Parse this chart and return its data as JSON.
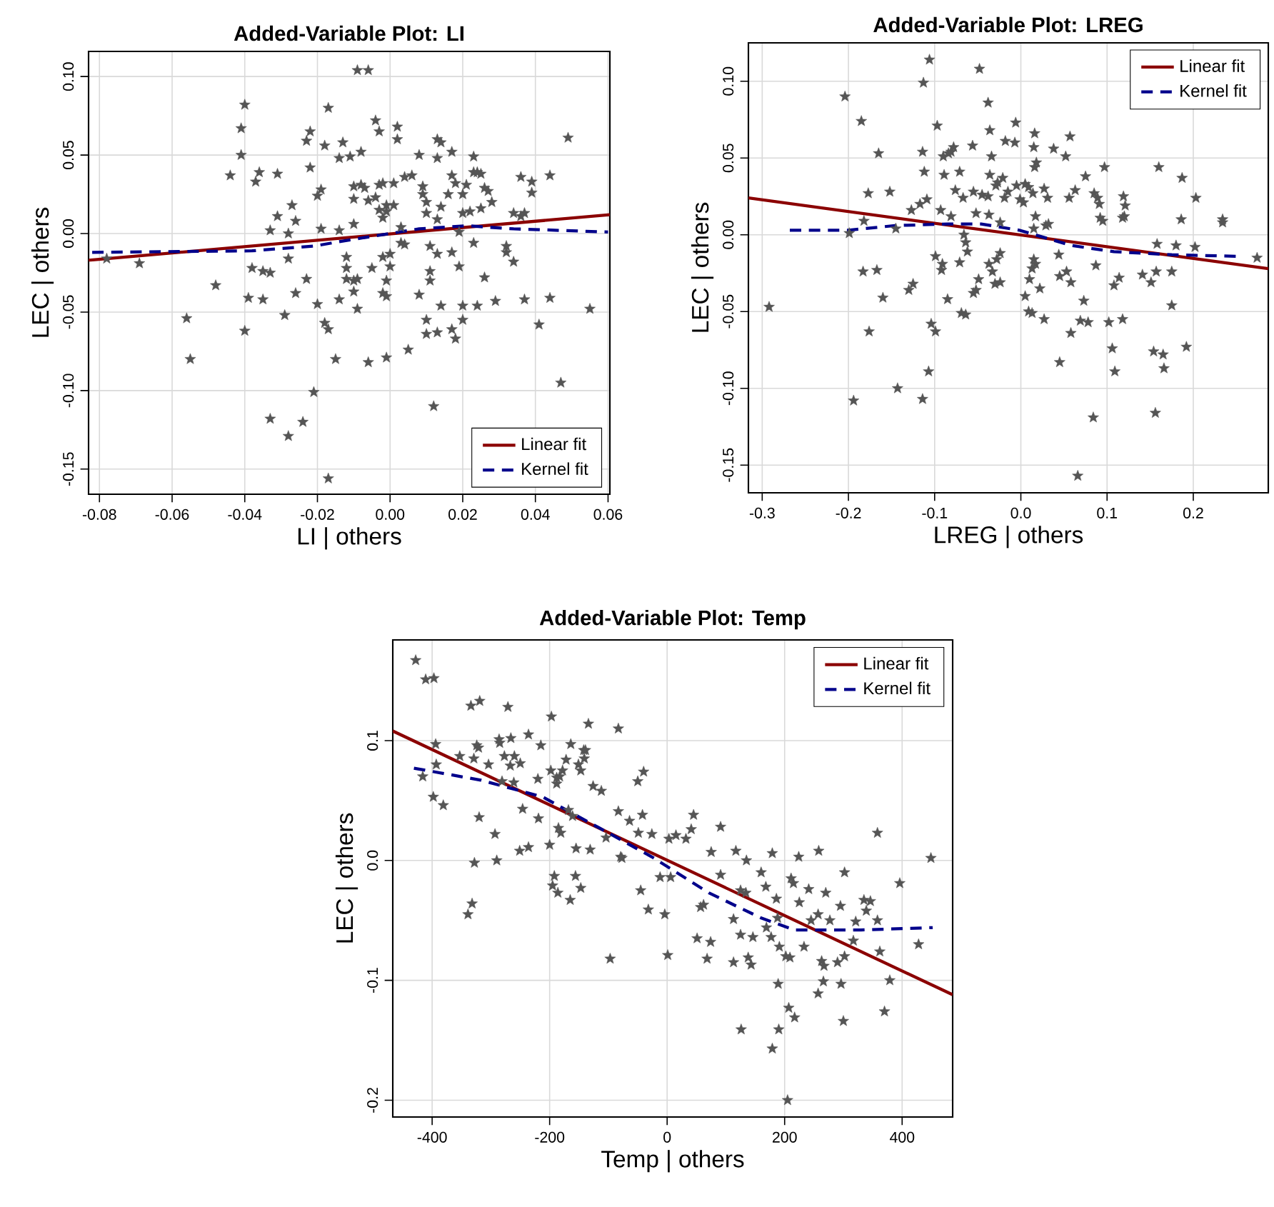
{
  "chart_data": [
    {
      "type": "scatter",
      "title": "Added-Variable Plot: LI",
      "xlabel": "LI | others",
      "ylabel": "LEC  | others",
      "xlim": [
        -0.083,
        0.0605
      ],
      "ylim": [
        -0.166,
        0.116
      ],
      "xticks": [
        {
          "value": -0.08,
          "label": "-0.08"
        },
        {
          "value": -0.06,
          "label": "-0.06"
        },
        {
          "value": -0.04,
          "label": "-0.04"
        },
        {
          "value": -0.02,
          "label": "-0.02"
        },
        {
          "value": 0,
          "label": "0.00"
        },
        {
          "value": 0.02,
          "label": "0.02"
        },
        {
          "value": 0.04,
          "label": "0.04"
        },
        {
          "value": 0.06,
          "label": "0.06"
        }
      ],
      "yticks": [
        {
          "value": -0.15,
          "label": "-0.15"
        },
        {
          "value": -0.1,
          "label": "-0.10"
        },
        {
          "value": -0.05,
          "label": "-0.05"
        },
        {
          "value": 0,
          "label": "0.00"
        },
        {
          "value": 0.05,
          "label": "0.05"
        },
        {
          "value": 0.1,
          "label": "0.10"
        }
      ],
      "grid": true,
      "legend": "bottom right",
      "series": [
        {
          "color": "#555555",
          "marker": "star",
          "x": [
            -0.009,
            -0.006,
            -0.04,
            -0.017,
            -0.004,
            -0.041,
            -0.022,
            -0.003,
            0.002,
            -0.023,
            -0.018,
            -0.013,
            0.002,
            0.013,
            0.014,
            0.049,
            -0.041,
            -0.014,
            -0.011,
            -0.008,
            0.008,
            0.013,
            0.017,
            0.023,
            -0.044,
            -0.036,
            -0.037,
            -0.031,
            -0.022,
            0.004,
            0.006,
            0.017,
            0.023,
            0.024,
            0.025,
            0.036,
            0.044,
            -0.019,
            -0.02,
            -0.01,
            -0.008,
            -0.007,
            -0.003,
            -0.002,
            0.001,
            0.009,
            0.018,
            0.021,
            0.026,
            0.027,
            0.039,
            0.039,
            -0.027,
            -0.01,
            -0.006,
            -0.004,
            -0.003,
            -0.001,
            0.001,
            0.009,
            0.01,
            0.014,
            0.016,
            0.02,
            0.025,
            0.028,
            -0.031,
            -0.026,
            -0.01,
            -0.002,
            -0.001,
            0.01,
            0.013,
            0.02,
            0.022,
            0.034,
            0.037,
            0.036,
            -0.033,
            -0.028,
            -0.019,
            -0.014,
            0.003,
            0.019,
            -0.078,
            -0.069,
            -0.028,
            -0.038,
            -0.035,
            -0.033,
            -0.023,
            -0.012,
            -0.012,
            -0.012,
            -0.01,
            -0.009,
            -0.005,
            -0.002,
            0.0,
            0.0,
            -0.001,
            0.003,
            0.004,
            0.011,
            0.013,
            0.011,
            0.011,
            0.017,
            0.019,
            0.023,
            0.026,
            0.032,
            0.032,
            0.034,
            -0.048,
            -0.039,
            -0.035,
            -0.026,
            -0.02,
            -0.014,
            -0.01,
            -0.009,
            -0.002,
            -0.001,
            0.008,
            0.014,
            0.02,
            0.024,
            0.029,
            0.037,
            0.044,
            0.055,
            -0.056,
            -0.04,
            -0.029,
            -0.018,
            -0.017,
            0.01,
            0.01,
            0.013,
            0.017,
            0.018,
            0.02,
            0.041,
            -0.055,
            -0.015,
            -0.006,
            -0.001,
            0.005,
            -0.021,
            0.047,
            -0.033,
            -0.024,
            -0.028,
            0.012,
            -0.017
          ],
          "values": [
            0.104,
            0.104,
            0.082,
            0.08,
            0.072,
            0.067,
            0.065,
            0.065,
            0.068,
            0.059,
            0.056,
            0.058,
            0.06,
            0.06,
            0.058,
            0.061,
            0.05,
            0.048,
            0.049,
            0.052,
            0.05,
            0.048,
            0.052,
            0.049,
            0.037,
            0.039,
            0.033,
            0.038,
            0.042,
            0.036,
            0.037,
            0.037,
            0.039,
            0.039,
            0.038,
            0.036,
            0.037,
            0.028,
            0.024,
            0.03,
            0.031,
            0.029,
            0.031,
            0.032,
            0.032,
            0.03,
            0.032,
            0.031,
            0.029,
            0.027,
            0.033,
            0.026,
            0.018,
            0.022,
            0.021,
            0.023,
            0.015,
            0.018,
            0.018,
            0.025,
            0.02,
            0.017,
            0.025,
            0.025,
            0.016,
            0.02,
            0.011,
            0.008,
            0.006,
            0.01,
            0.014,
            0.013,
            0.009,
            0.013,
            0.014,
            0.013,
            0.013,
            0.011,
            0.002,
            0.0,
            0.003,
            0.002,
            0.004,
            0.001,
            -0.016,
            -0.019,
            -0.016,
            -0.022,
            -0.024,
            -0.025,
            -0.029,
            -0.015,
            -0.022,
            -0.029,
            -0.03,
            -0.029,
            -0.022,
            -0.015,
            -0.013,
            -0.021,
            -0.03,
            -0.006,
            -0.007,
            -0.008,
            -0.013,
            -0.024,
            -0.03,
            -0.012,
            -0.021,
            -0.006,
            -0.028,
            -0.008,
            -0.012,
            -0.018,
            -0.033,
            -0.041,
            -0.042,
            -0.038,
            -0.045,
            -0.042,
            -0.037,
            -0.048,
            -0.038,
            -0.04,
            -0.039,
            -0.046,
            -0.046,
            -0.046,
            -0.043,
            -0.042,
            -0.041,
            -0.048,
            -0.054,
            -0.062,
            -0.052,
            -0.057,
            -0.061,
            -0.055,
            -0.064,
            -0.063,
            -0.061,
            -0.067,
            -0.055,
            -0.058,
            -0.08,
            -0.08,
            -0.082,
            -0.079,
            -0.074,
            -0.101,
            -0.095,
            -0.118,
            -0.12,
            -0.129,
            -0.11,
            -0.156
          ]
        },
        {
          "type": "line",
          "name": "Linear fit",
          "color": "#8b0000",
          "line_style": "solid",
          "x": [
            -0.083,
            0.0605
          ],
          "values": [
            -0.017,
            0.012
          ]
        },
        {
          "type": "line",
          "name": "Kernel fit",
          "color": "#00008b",
          "line_style": "dashed",
          "x": [
            -0.082,
            -0.038,
            -0.021,
            -0.011,
            0.0,
            0.008,
            0.021,
            0.034,
            0.047,
            0.06
          ],
          "values": [
            -0.012,
            -0.011,
            -0.008,
            -0.004,
            0.0,
            0.003,
            0.005,
            0.003,
            0.002,
            0.001
          ]
        }
      ]
    },
    {
      "type": "scatter",
      "title": "Added-Variable Plot: LREG",
      "xlabel": "LREG | others",
      "ylabel": "LEC  | others",
      "xlim": [
        -0.316,
        0.287
      ],
      "ylim": [
        -0.168,
        0.125
      ],
      "xticks": [
        {
          "value": -0.3,
          "label": "-0.3"
        },
        {
          "value": -0.2,
          "label": "-0.2"
        },
        {
          "value": -0.1,
          "label": "-0.1"
        },
        {
          "value": 0,
          "label": "0.0"
        },
        {
          "value": 0.1,
          "label": "0.1"
        },
        {
          "value": 0.2,
          "label": "0.2"
        }
      ],
      "yticks": [
        {
          "value": -0.15,
          "label": "-0.15"
        },
        {
          "value": -0.1,
          "label": "-0.10"
        },
        {
          "value": -0.05,
          "label": "-0.05"
        },
        {
          "value": 0,
          "label": "0.00"
        },
        {
          "value": 0.05,
          "label": "0.05"
        },
        {
          "value": 0.1,
          "label": "0.10"
        }
      ],
      "grid": true,
      "legend": "top right",
      "series": [
        {
          "color": "#555555",
          "marker": "star",
          "x": [
            -0.106,
            -0.048,
            -0.113,
            -0.204,
            -0.038,
            -0.185,
            -0.097,
            -0.036,
            -0.006,
            0.016,
            0.057,
            -0.018,
            -0.007,
            -0.056,
            -0.114,
            -0.078,
            -0.09,
            -0.084,
            -0.081,
            0.015,
            0.038,
            0.052,
            -0.165,
            -0.034,
            0.018,
            0.016,
            -0.112,
            -0.089,
            -0.071,
            -0.036,
            -0.021,
            -0.027,
            -0.029,
            -0.005,
            0.005,
            0.009,
            0.075,
            0.097,
            0.16,
            0.187,
            -0.177,
            -0.152,
            -0.076,
            -0.055,
            -0.045,
            -0.038,
            -0.015,
            -0.001,
            0.003,
            0.014,
            0.027,
            0.031,
            0.056,
            0.063,
            0.085,
            0.089,
            0.119,
            0.121,
            0.203,
            -0.127,
            -0.117,
            -0.109,
            -0.093,
            -0.081,
            -0.052,
            -0.037,
            -0.067,
            -0.019,
            0.017,
            0.029,
            0.032,
            0.091,
            0.092,
            0.095,
            0.118,
            0.12,
            0.186,
            0.234,
            0.234,
            -0.182,
            -0.199,
            -0.145,
            -0.024,
            0.015,
            -0.066,
            -0.064,
            -0.062,
            -0.071,
            0.158,
            0.18,
            0.202,
            0.274,
            -0.099,
            -0.091,
            -0.092,
            -0.037,
            -0.028,
            -0.024,
            -0.033,
            0.015,
            0.017,
            0.013,
            0.01,
            0.044,
            -0.183,
            -0.167,
            -0.125,
            -0.13,
            -0.049,
            -0.03,
            -0.024,
            -0.052,
            -0.055,
            0.022,
            0.045,
            0.053,
            0.058,
            0.087,
            0.108,
            0.114,
            0.141,
            0.151,
            0.157,
            0.175,
            -0.16,
            -0.085,
            0.005,
            0.073,
            0.175,
            -0.292,
            -0.069,
            -0.064,
            0.009,
            0.013,
            0.027,
            -0.104,
            -0.099,
            -0.176,
            0.058,
            0.069,
            0.078,
            0.102,
            0.118,
            0.106,
            0.154,
            0.165,
            0.192,
            0.045,
            -0.107,
            0.109,
            0.166,
            -0.143,
            -0.194,
            -0.114,
            0.084,
            0.156,
            0.066
          ],
          "values": [
            0.114,
            0.108,
            0.099,
            0.09,
            0.086,
            0.074,
            0.071,
            0.068,
            0.073,
            0.066,
            0.064,
            0.061,
            0.06,
            0.058,
            0.054,
            0.057,
            0.051,
            0.053,
            0.054,
            0.057,
            0.056,
            0.051,
            0.053,
            0.051,
            0.047,
            0.044,
            0.041,
            0.039,
            0.041,
            0.039,
            0.037,
            0.034,
            0.032,
            0.032,
            0.033,
            0.031,
            0.038,
            0.044,
            0.044,
            0.037,
            0.027,
            0.028,
            0.029,
            0.028,
            0.026,
            0.025,
            0.028,
            0.023,
            0.021,
            0.027,
            0.03,
            0.024,
            0.024,
            0.029,
            0.027,
            0.024,
            0.025,
            0.019,
            0.024,
            0.016,
            0.02,
            0.023,
            0.016,
            0.012,
            0.014,
            0.013,
            0.024,
            0.024,
            0.012,
            0.006,
            0.007,
            0.02,
            0.011,
            0.009,
            0.011,
            0.012,
            0.01,
            0.01,
            0.008,
            0.009,
            0.001,
            0.004,
            0.008,
            0.004,
            0.0,
            -0.005,
            -0.011,
            -0.018,
            -0.006,
            -0.007,
            -0.008,
            -0.015,
            -0.014,
            -0.019,
            -0.023,
            -0.019,
            -0.016,
            -0.012,
            -0.024,
            -0.016,
            -0.019,
            -0.022,
            -0.029,
            -0.013,
            -0.024,
            -0.023,
            -0.032,
            -0.036,
            -0.029,
            -0.032,
            -0.031,
            -0.036,
            -0.038,
            -0.035,
            -0.027,
            -0.024,
            -0.031,
            -0.02,
            -0.033,
            -0.028,
            -0.026,
            -0.031,
            -0.024,
            -0.024,
            -0.041,
            -0.042,
            -0.04,
            -0.043,
            -0.046,
            -0.047,
            -0.051,
            -0.052,
            -0.05,
            -0.051,
            -0.055,
            -0.058,
            -0.063,
            -0.063,
            -0.064,
            -0.056,
            -0.057,
            -0.057,
            -0.055,
            -0.074,
            -0.076,
            -0.078,
            -0.073,
            -0.083,
            -0.089,
            -0.089,
            -0.087,
            -0.1,
            -0.108,
            -0.107,
            -0.119,
            -0.116,
            -0.157
          ]
        },
        {
          "type": "line",
          "name": "Linear fit",
          "color": "#8b0000",
          "line_style": "solid",
          "x": [
            -0.316,
            0.287
          ],
          "values": [
            0.024,
            -0.022
          ]
        },
        {
          "type": "line",
          "name": "Kernel fit",
          "color": "#00008b",
          "line_style": "dashed",
          "x": [
            -0.268,
            -0.2,
            -0.146,
            -0.085,
            -0.046,
            -0.002,
            0.059,
            0.108,
            0.175,
            0.252
          ],
          "values": [
            0.003,
            0.003,
            0.006,
            0.007,
            0.007,
            0.003,
            -0.007,
            -0.011,
            -0.013,
            -0.014
          ]
        }
      ]
    },
    {
      "type": "scatter",
      "title": "Added-Variable Plot: Temp",
      "xlabel": "Temp | others",
      "ylabel": "LEC  | others",
      "xlim": [
        -467,
        486
      ],
      "ylim": [
        -0.214,
        0.184
      ],
      "xticks": [
        -400,
        -200,
        0,
        200,
        400
      ],
      "yticks": [
        {
          "value": -0.2,
          "label": "-0.2"
        },
        {
          "value": -0.1,
          "label": "-0.1"
        },
        {
          "value": 0,
          "label": "0.0"
        },
        {
          "value": 0.1,
          "label": "0.1"
        }
      ],
      "grid": true,
      "legend": "top right",
      "series": [
        {
          "color": "#555555",
          "marker": "star",
          "x": [
            -428,
            -411,
            -397,
            -334,
            -319,
            -271,
            -197,
            -134,
            -83,
            -236,
            -215,
            -164,
            -142,
            -324,
            -321,
            -394,
            -286,
            -285,
            -266,
            -353,
            -329,
            -304,
            -277,
            -260,
            -250,
            -267,
            -393,
            -416,
            -220,
            -198,
            -188,
            -178,
            -183,
            -188,
            -172,
            -151,
            -147,
            -141,
            -139,
            -126,
            -112,
            -50,
            -40,
            -398,
            -381,
            -320,
            -281,
            -261,
            -246,
            -219,
            -168,
            -161,
            -83,
            -64,
            -42,
            -49,
            -104,
            -26,
            3,
            15,
            32,
            45,
            41,
            91,
            -293,
            -200,
            -251,
            -236,
            -155,
            -131,
            -328,
            -290,
            -185,
            -181,
            -79,
            -77,
            -12,
            6,
            -45,
            -192,
            -195,
            -186,
            -156,
            -147,
            -165,
            -332,
            -339,
            -32,
            -4,
            1,
            -97,
            75,
            117,
            135,
            91,
            179,
            224,
            258,
            358,
            449,
            396,
            302,
            160,
            168,
            125,
            134,
            186,
            211,
            215,
            241,
            270,
            225,
            295,
            335,
            346,
            113,
            62,
            57,
            188,
            257,
            277,
            321,
            358,
            339,
            169,
            245,
            51,
            74,
            125,
            146,
            177,
            191,
            233,
            68,
            113,
            138,
            143,
            202,
            209,
            263,
            267,
            290,
            302,
            317,
            362,
            428,
            189,
            266,
            257,
            296,
            379,
            370,
            207,
            217,
            126,
            190,
            179,
            300,
            205
          ],
          "values": [
            0.167,
            0.151,
            0.152,
            0.129,
            0.133,
            0.128,
            0.12,
            0.114,
            0.11,
            0.105,
            0.096,
            0.097,
            0.092,
            0.096,
            0.094,
            0.097,
            0.101,
            0.098,
            0.102,
            0.087,
            0.085,
            0.08,
            0.087,
            0.087,
            0.081,
            0.079,
            0.08,
            0.07,
            0.068,
            0.075,
            0.069,
            0.075,
            0.07,
            0.064,
            0.084,
            0.08,
            0.075,
            0.085,
            0.092,
            0.062,
            0.058,
            0.066,
            0.074,
            0.053,
            0.046,
            0.036,
            0.066,
            0.065,
            0.043,
            0.035,
            0.042,
            0.037,
            0.041,
            0.033,
            0.038,
            0.023,
            0.019,
            0.022,
            0.018,
            0.021,
            0.018,
            0.038,
            0.026,
            0.028,
            0.022,
            0.013,
            0.008,
            0.011,
            0.01,
            0.009,
            -0.002,
            0.0,
            0.027,
            0.023,
            0.003,
            0.002,
            -0.014,
            -0.014,
            -0.025,
            -0.013,
            -0.021,
            -0.027,
            -0.013,
            -0.023,
            -0.033,
            -0.036,
            -0.045,
            -0.041,
            -0.045,
            -0.079,
            -0.082,
            0.007,
            0.008,
            0.0,
            -0.012,
            0.006,
            0.003,
            0.008,
            0.023,
            0.002,
            -0.019,
            -0.01,
            -0.01,
            -0.022,
            -0.025,
            -0.027,
            -0.032,
            -0.015,
            -0.019,
            -0.024,
            -0.027,
            -0.035,
            -0.038,
            -0.033,
            -0.034,
            -0.049,
            -0.037,
            -0.039,
            -0.048,
            -0.045,
            -0.05,
            -0.051,
            -0.05,
            -0.042,
            -0.056,
            -0.05,
            -0.065,
            -0.068,
            -0.062,
            -0.064,
            -0.064,
            -0.072,
            -0.072,
            -0.082,
            -0.085,
            -0.081,
            -0.087,
            -0.08,
            -0.081,
            -0.084,
            -0.088,
            -0.085,
            -0.08,
            -0.067,
            -0.076,
            -0.07,
            -0.103,
            -0.101,
            -0.111,
            -0.103,
            -0.1,
            -0.126,
            -0.123,
            -0.131,
            -0.141,
            -0.141,
            -0.157,
            -0.134,
            -0.2
          ]
        },
        {
          "type": "line",
          "name": "Linear fit",
          "color": "#8b0000",
          "line_style": "solid",
          "x": [
            -467,
            486
          ],
          "values": [
            0.108,
            -0.112
          ]
        },
        {
          "type": "line",
          "name": "Kernel fit",
          "color": "#00008b",
          "line_style": "dashed",
          "x": [
            -431,
            -317,
            -212,
            -115,
            -26,
            71,
            160,
            217,
            330,
            452
          ],
          "values": [
            0.077,
            0.067,
            0.053,
            0.027,
            0.003,
            -0.027,
            -0.048,
            -0.058,
            -0.058,
            -0.056
          ]
        }
      ]
    }
  ]
}
